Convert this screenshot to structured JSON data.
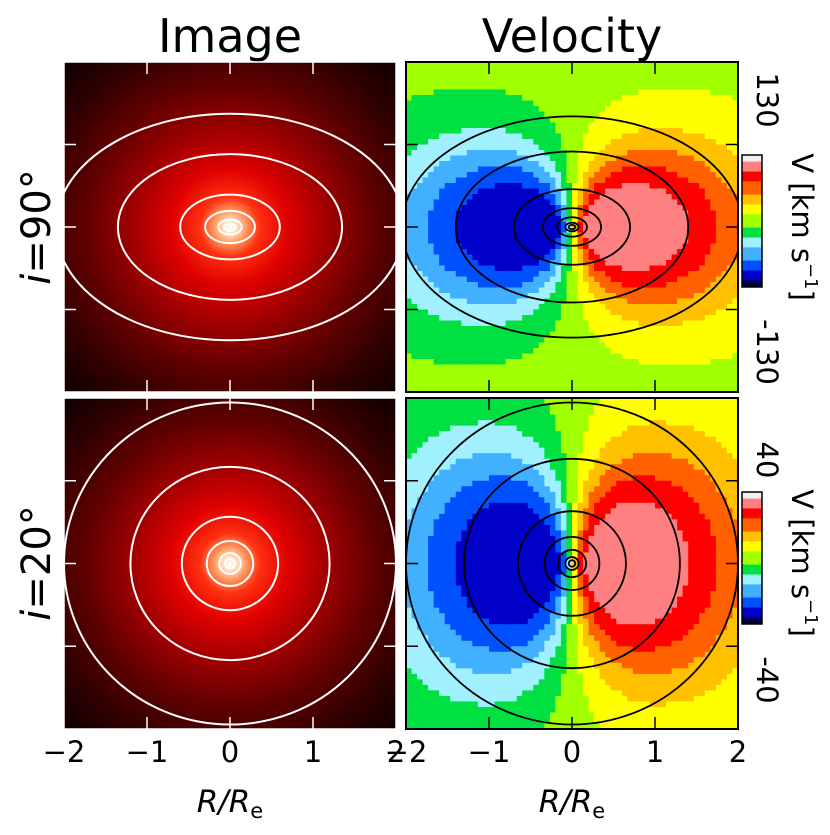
{
  "colors": {
    "image_colormap": [
      "#000000",
      "#3a0000",
      "#7a0000",
      "#c00000",
      "#ff2a00",
      "#ff8040",
      "#ffd0b0",
      "#ffffff"
    ],
    "velocity_colormap": [
      "#000040",
      "#0000c8",
      "#0050ff",
      "#40b0ff",
      "#a0f0ff",
      "#00e040",
      "#a0ff00",
      "#ffff00",
      "#ffc000",
      "#ff6000",
      "#ff0000",
      "#ff8080",
      "#f0f0f0"
    ],
    "image_contours": "#ffffff",
    "velocity_contours": "#000000"
  },
  "columns": [
    {
      "id": "image",
      "title": "Image"
    },
    {
      "id": "velocity",
      "title": "Velocity"
    }
  ],
  "rows": [
    {
      "id": "edge-on",
      "label_prefix": "i",
      "label_eq": "=",
      "label_value": "90°",
      "inclination": 90,
      "cbar_max": "130",
      "cbar_min": "-130",
      "vmax": 130
    },
    {
      "id": "low-incl",
      "label_prefix": "i",
      "label_eq": "=",
      "label_value": "20°",
      "inclination": 20,
      "cbar_max": "40",
      "cbar_min": "-40",
      "vmax": 40
    }
  ],
  "colorbar_label": {
    "main": "V [km s",
    "sup": "−1",
    "close": "]"
  },
  "xaxis": {
    "label_main": "R/R",
    "label_sub": "e",
    "ticks": [
      "−2",
      "−1",
      "0",
      "1",
      "2"
    ]
  },
  "chart_data": [
    {
      "type": "heatmap",
      "panel": "image, i=90°",
      "title": "Image",
      "xlim": [
        -2,
        2
      ],
      "ylim": [
        -2,
        2
      ],
      "x_ticks": [
        -2,
        -1,
        0,
        1,
        2
      ],
      "contour_axis_ratio": 0.65
    },
    {
      "type": "heatmap",
      "panel": "velocity, i=90°",
      "title": "Velocity",
      "xlim": [
        -2,
        2
      ],
      "ylim": [
        -2,
        2
      ],
      "x_ticks": [
        -2,
        -1,
        0,
        1,
        2
      ],
      "colorbar_range": [
        -130,
        130
      ],
      "colorbar_label": "V [km s−1]"
    },
    {
      "type": "heatmap",
      "panel": "image, i=20°",
      "xlim": [
        -2,
        2
      ],
      "ylim": [
        -2,
        2
      ],
      "x_ticks": [
        -2,
        -1,
        0,
        1,
        2
      ],
      "contour_axis_ratio": 0.97
    },
    {
      "type": "heatmap",
      "panel": "velocity, i=20°",
      "xlim": [
        -2,
        2
      ],
      "ylim": [
        -2,
        2
      ],
      "x_ticks": [
        -2,
        -1,
        0,
        1,
        2
      ],
      "colorbar_range": [
        -40,
        40
      ],
      "colorbar_label": "V [km s−1]"
    }
  ]
}
